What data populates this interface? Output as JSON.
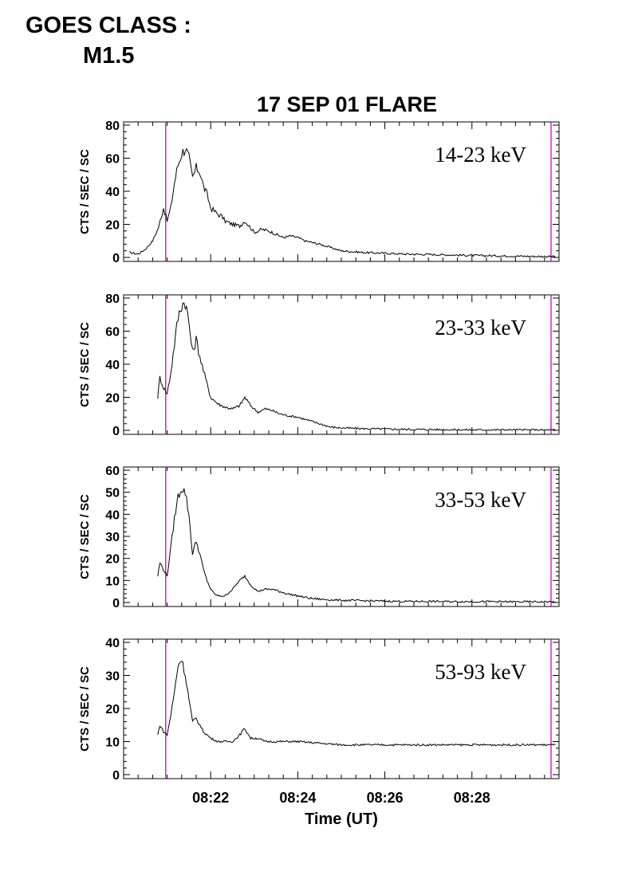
{
  "header": {
    "goes_line1": "GOES CLASS :",
    "goes_line2": "M1.5"
  },
  "colors": {
    "marker": "#cc00cc",
    "trace": "#000000",
    "axis": "#000000"
  },
  "chart_data": [
    {
      "type": "line",
      "title": "17 SEP 01 FLARE",
      "band_label": "14-23 keV",
      "ylabel": "CTS / SEC / SC",
      "xlabel": "",
      "xlim": [
        "08:20:00",
        "08:30:00"
      ],
      "ylim": [
        0,
        80
      ],
      "yticks": [
        "0",
        "20",
        "40",
        "60",
        "80"
      ],
      "xtick_labels": [
        "",
        "",
        "",
        ""
      ],
      "markers": [
        "08:20:58",
        "08:29:49"
      ],
      "series": [
        {
          "x": [
            "08:20:08",
            "08:20:20",
            "08:20:30",
            "08:20:40",
            "08:20:48",
            "08:20:55",
            "08:21:00",
            "08:21:05",
            "08:21:10",
            "08:21:15",
            "08:21:20",
            "08:21:25",
            "08:21:30",
            "08:21:35",
            "08:21:40",
            "08:21:45",
            "08:21:50",
            "08:21:55",
            "08:22:00",
            "08:22:05",
            "08:22:10",
            "08:22:15",
            "08:22:20",
            "08:22:30",
            "08:22:40",
            "08:22:47",
            "08:22:55",
            "08:23:00",
            "08:23:10",
            "08:23:20",
            "08:23:30",
            "08:23:40",
            "08:23:50",
            "08:24:00",
            "08:24:10",
            "08:24:20",
            "08:24:30",
            "08:24:45",
            "08:25:00",
            "08:25:30",
            "08:26:00",
            "08:26:30",
            "08:27:00",
            "08:27:30",
            "08:28:00",
            "08:28:30",
            "08:29:00",
            "08:29:30",
            "08:29:55"
          ],
          "y": [
            3,
            2,
            5,
            10,
            18,
            30,
            22,
            30,
            45,
            56,
            63,
            66,
            60,
            48,
            54,
            52,
            43,
            38,
            30,
            28,
            26,
            25,
            22,
            20,
            19,
            22,
            18,
            15,
            17,
            16,
            14,
            12,
            13,
            12,
            10,
            9,
            8,
            6,
            4,
            3,
            2.5,
            2,
            1.8,
            1.5,
            1.2,
            1,
            0.8,
            0.6,
            0.5
          ]
        }
      ]
    },
    {
      "type": "line",
      "title": "",
      "band_label": "23-33 keV",
      "ylabel": "CTS / SEC / SC",
      "xlabel": "",
      "xlim": [
        "08:20:00",
        "08:30:00"
      ],
      "ylim": [
        0,
        80
      ],
      "yticks": [
        "0",
        "20",
        "40",
        "60",
        "80"
      ],
      "xtick_labels": [
        "",
        "",
        "",
        ""
      ],
      "markers": [
        "08:20:58",
        "08:29:49"
      ],
      "series": [
        {
          "x": [
            "08:20:47",
            "08:20:50",
            "08:20:55",
            "08:21:00",
            "08:21:05",
            "08:21:10",
            "08:21:15",
            "08:21:20",
            "08:21:25",
            "08:21:30",
            "08:21:35",
            "08:21:40",
            "08:21:45",
            "08:21:50",
            "08:21:55",
            "08:22:00",
            "08:22:05",
            "08:22:10",
            "08:22:20",
            "08:22:30",
            "08:22:40",
            "08:22:47",
            "08:22:55",
            "08:23:05",
            "08:23:15",
            "08:23:25",
            "08:23:35",
            "08:23:45",
            "08:24:00",
            "08:24:15",
            "08:24:30",
            "08:24:45",
            "08:25:00",
            "08:25:30",
            "08:26:00",
            "08:26:30",
            "08:27:00",
            "08:27:30",
            "08:28:00",
            "08:28:30",
            "08:29:00",
            "08:29:30",
            "08:29:55"
          ],
          "y": [
            20,
            32,
            26,
            22,
            35,
            52,
            68,
            76,
            78,
            65,
            47,
            55,
            45,
            36,
            28,
            20,
            18,
            16,
            14,
            13,
            15,
            20,
            15,
            11,
            13,
            12,
            10,
            9,
            8,
            6,
            4,
            2,
            1.5,
            1,
            0.8,
            0.6,
            0.5,
            0.4,
            0.3,
            0.3,
            0.3,
            0.2,
            0.2
          ]
        }
      ]
    },
    {
      "type": "line",
      "title": "",
      "band_label": "33-53 keV",
      "ylabel": "CTS / SEC / SC",
      "xlabel": "",
      "xlim": [
        "08:20:00",
        "08:30:00"
      ],
      "ylim": [
        0,
        60
      ],
      "yticks": [
        "0",
        "10",
        "20",
        "30",
        "40",
        "50",
        "60"
      ],
      "xtick_labels": [
        "",
        "",
        "",
        ""
      ],
      "markers": [
        "08:20:58",
        "08:29:49"
      ],
      "series": [
        {
          "x": [
            "08:20:47",
            "08:20:50",
            "08:20:55",
            "08:21:00",
            "08:21:05",
            "08:21:10",
            "08:21:15",
            "08:21:20",
            "08:21:25",
            "08:21:30",
            "08:21:35",
            "08:21:40",
            "08:21:45",
            "08:21:50",
            "08:21:55",
            "08:22:00",
            "08:22:05",
            "08:22:10",
            "08:22:20",
            "08:22:30",
            "08:22:40",
            "08:22:47",
            "08:22:55",
            "08:23:05",
            "08:23:15",
            "08:23:25",
            "08:23:35",
            "08:23:45",
            "08:24:00",
            "08:24:15",
            "08:24:30",
            "08:24:45",
            "08:25:00",
            "08:25:30",
            "08:26:00",
            "08:26:30",
            "08:27:00",
            "08:27:30",
            "08:28:00",
            "08:28:30",
            "08:29:00",
            "08:29:30",
            "08:29:55"
          ],
          "y": [
            12,
            18,
            15,
            12,
            25,
            38,
            48,
            52,
            50,
            40,
            22,
            28,
            22,
            15,
            10,
            6,
            4,
            3,
            3,
            6,
            10,
            12,
            8,
            5,
            6,
            6,
            5,
            4,
            3,
            2,
            1.5,
            1.2,
            1,
            0.8,
            0.6,
            0.5,
            0.5,
            0.4,
            0.4,
            0.4,
            0.3,
            0.3,
            0.3
          ]
        }
      ]
    },
    {
      "type": "line",
      "title": "",
      "band_label": "53-93 keV",
      "ylabel": "CTS / SEC / SC",
      "xlabel": "Time (UT)",
      "xlim": [
        "08:20:00",
        "08:30:00"
      ],
      "ylim": [
        0,
        40
      ],
      "yticks": [
        "0",
        "10",
        "20",
        "30",
        "40"
      ],
      "xtick_labels": [
        "08:22",
        "08:24",
        "08:26",
        "08:28"
      ],
      "markers": [
        "08:20:58",
        "08:29:49"
      ],
      "series": [
        {
          "x": [
            "08:20:47",
            "08:20:50",
            "08:20:55",
            "08:21:00",
            "08:21:05",
            "08:21:10",
            "08:21:15",
            "08:21:20",
            "08:21:25",
            "08:21:30",
            "08:21:35",
            "08:21:40",
            "08:21:45",
            "08:21:50",
            "08:22:00",
            "08:22:10",
            "08:22:20",
            "08:22:30",
            "08:22:40",
            "08:22:47",
            "08:22:55",
            "08:23:05",
            "08:23:15",
            "08:23:30",
            "08:24:00",
            "08:24:30",
            "08:25:00",
            "08:25:30",
            "08:26:00",
            "08:26:30",
            "08:27:00",
            "08:27:30",
            "08:28:00",
            "08:28:30",
            "08:29:00",
            "08:29:30",
            "08:29:55"
          ],
          "y": [
            12,
            15,
            13,
            12,
            18,
            25,
            33,
            35,
            30,
            23,
            16,
            17,
            15,
            13,
            11,
            10,
            10,
            10,
            12,
            14,
            11,
            11,
            10,
            10,
            10,
            9.5,
            9,
            9,
            9,
            9,
            9,
            9,
            9,
            9,
            9,
            9,
            9
          ]
        }
      ]
    }
  ]
}
